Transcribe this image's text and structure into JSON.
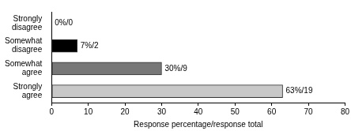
{
  "chart_data": {
    "type": "bar",
    "orientation": "horizontal",
    "x_label": "Response percentage/response total",
    "categories": [
      "Strongly disagree",
      "Somewhat disagree",
      "Somewhat agree",
      "Strongly agree"
    ],
    "values": [
      0,
      7,
      30,
      63
    ],
    "value_labels": [
      "0%/0",
      "7%/2",
      "30%/9",
      "63%/19"
    ],
    "colors": [
      "#ffffff",
      "#000000",
      "#777777",
      "#c8c8c8"
    ],
    "xlim": [
      0,
      80
    ],
    "xticks": [
      0,
      10,
      20,
      30,
      40,
      50,
      60,
      70,
      80
    ],
    "grid": false,
    "data_labels": true
  }
}
